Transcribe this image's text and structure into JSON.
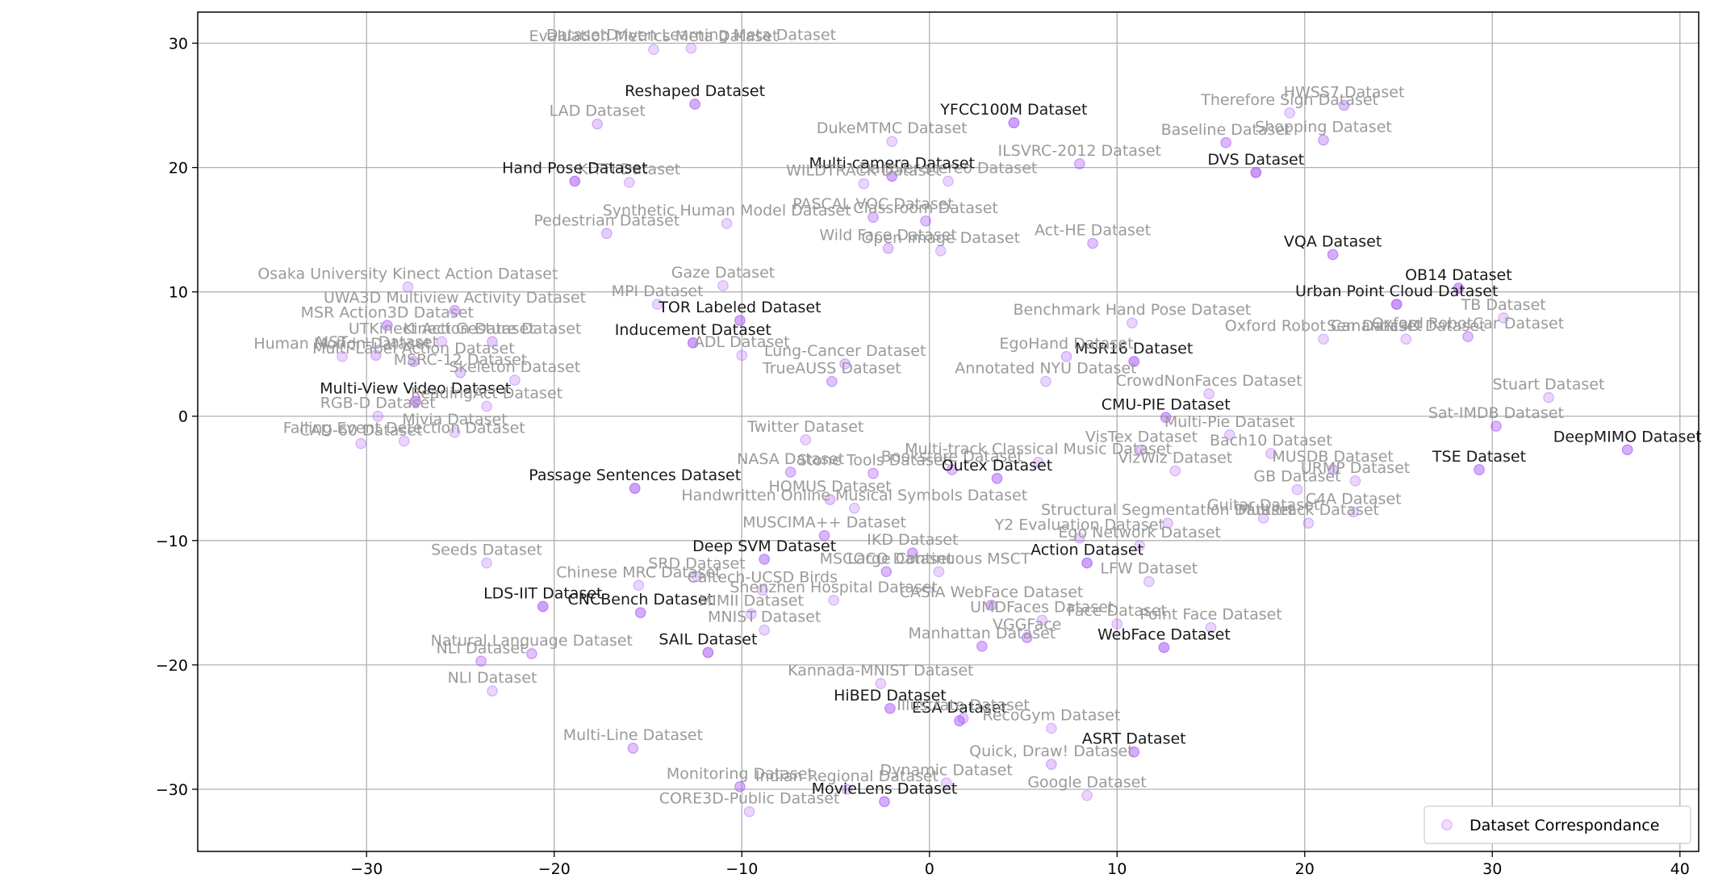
{
  "colors": {
    "point": "#a855f7",
    "grid": "#b0b0b0",
    "axis": "#000000",
    "label_light": "#9a9a9a",
    "label_dark": "#1a1a1a"
  },
  "chart_data": {
    "type": "scatter",
    "title": "",
    "xlabel": "",
    "ylabel": "",
    "xlim": [
      -39,
      41
    ],
    "ylim": [
      -35,
      32.5
    ],
    "x_ticks": [
      -30,
      -20,
      -10,
      0,
      10,
      20,
      30,
      40
    ],
    "y_ticks": [
      -30,
      -20,
      -10,
      0,
      10,
      20,
      30
    ],
    "x_tick_labels": [
      "−30",
      "−20",
      "−10",
      "0",
      "10",
      "20",
      "30",
      "40"
    ],
    "y_tick_labels": [
      "−30",
      "−20",
      "−10",
      "0",
      "10",
      "20",
      "30"
    ],
    "grid": true,
    "legend": {
      "position": "bottom-right",
      "entries": [
        "Dataset Correspondance"
      ]
    },
    "series": [
      {
        "name": "Dataset Correspondance",
        "points": [
          {
            "x": -14.7,
            "y": 29.5,
            "label": "Evaluation Metrics Meta Dataset",
            "strength": 0.2
          },
          {
            "x": -12.7,
            "y": 29.6,
            "label": "DatasetDriven Learning Meta Dataset",
            "strength": 0.2
          },
          {
            "x": -12.5,
            "y": 25.1,
            "label": "Reshaped Dataset",
            "strength": 0.6
          },
          {
            "x": -17.7,
            "y": 23.5,
            "label": "LAD Dataset",
            "strength": 0.3
          },
          {
            "x": -16.0,
            "y": 18.8,
            "label": "KITTI Dataset",
            "strength": 0.2
          },
          {
            "x": -18.9,
            "y": 18.9,
            "label": "Hand Pose Dataset",
            "strength": 0.7
          },
          {
            "x": 4.5,
            "y": 23.6,
            "label": "YFCC100M Dataset",
            "strength": 0.7
          },
          {
            "x": -2.0,
            "y": 22.1,
            "label": "DukeMTMC Dataset",
            "strength": 0.2
          },
          {
            "x": 8.0,
            "y": 20.3,
            "label": "ILSVRC-2012 Dataset",
            "strength": 0.4
          },
          {
            "x": 1.0,
            "y": 18.9,
            "label": "Daimler-stereo Dataset",
            "strength": 0.2
          },
          {
            "x": -2.0,
            "y": 19.3,
            "label": "Multi-camera Dataset",
            "strength": 0.6
          },
          {
            "x": -3.5,
            "y": 18.7,
            "label": "WILDTRACK Dataset",
            "strength": 0.2
          },
          {
            "x": 17.4,
            "y": 19.6,
            "label": "DVS Dataset",
            "strength": 0.8
          },
          {
            "x": 15.8,
            "y": 22.0,
            "label": "Baseline Dataset",
            "strength": 0.5
          },
          {
            "x": 21.0,
            "y": 22.2,
            "label": "Shopping Dataset",
            "strength": 0.4
          },
          {
            "x": 19.2,
            "y": 24.4,
            "label": "Therefore Sign Dataset",
            "strength": 0.2
          },
          {
            "x": 22.1,
            "y": 25.0,
            "label": "HWSS7 Dataset",
            "strength": 0.4
          },
          {
            "x": -17.2,
            "y": 14.7,
            "label": "Pedestrian Dataset",
            "strength": 0.3
          },
          {
            "x": -10.8,
            "y": 15.5,
            "label": "Synthetic Human Model Dataset",
            "strength": 0.2
          },
          {
            "x": -3.0,
            "y": 16.0,
            "label": "PASCAL VOC Dataset",
            "strength": 0.4
          },
          {
            "x": -0.2,
            "y": 15.7,
            "label": "Classroom Dataset",
            "strength": 0.4
          },
          {
            "x": -2.2,
            "y": 13.5,
            "label": "Wild Face Dataset",
            "strength": 0.3
          },
          {
            "x": 0.6,
            "y": 13.3,
            "label": "Open Image Dataset",
            "strength": 0.2
          },
          {
            "x": 8.7,
            "y": 13.9,
            "label": "Act-HE Dataset",
            "strength": 0.4
          },
          {
            "x": 21.5,
            "y": 13.0,
            "label": "VQA Dataset",
            "strength": 0.6
          },
          {
            "x": 28.2,
            "y": 10.3,
            "label": "OB14 Dataset",
            "strength": 0.6
          },
          {
            "x": 24.9,
            "y": 9.0,
            "label": "Urban Point Cloud Dataset",
            "strength": 0.8
          },
          {
            "x": 30.6,
            "y": 7.9,
            "label": "TB Dataset",
            "strength": 0.2
          },
          {
            "x": 28.7,
            "y": 6.4,
            "label": "Oxford RobotCar Dataset",
            "strength": 0.4
          },
          {
            "x": 25.4,
            "y": 6.2,
            "label": "Semantic3D Dataset",
            "strength": 0.2
          },
          {
            "x": 21.0,
            "y": 6.2,
            "label": "Oxford Robot Car Dataset",
            "strength": 0.2
          },
          {
            "x": -10.1,
            "y": 7.7,
            "label": "TOR Labeled Dataset",
            "strength": 0.6
          },
          {
            "x": -12.6,
            "y": 5.9,
            "label": "Inducement Dataset",
            "strength": 0.7
          },
          {
            "x": -14.5,
            "y": 9.0,
            "label": "MPI Dataset",
            "strength": 0.2
          },
          {
            "x": -11.0,
            "y": 10.5,
            "label": "Gaze Dataset",
            "strength": 0.2
          },
          {
            "x": -10.0,
            "y": 4.9,
            "label": "ADL Dataset",
            "strength": 0.2
          },
          {
            "x": -5.2,
            "y": 2.8,
            "label": "TrueAUSS Dataset",
            "strength": 0.4
          },
          {
            "x": -4.5,
            "y": 4.2,
            "label": "Lung-Cancer Dataset",
            "strength": 0.3
          },
          {
            "x": 10.9,
            "y": 4.4,
            "label": "MSR16 Dataset",
            "strength": 0.7
          },
          {
            "x": 6.2,
            "y": 2.8,
            "label": "Annotated NYU Dataset",
            "strength": 0.2
          },
          {
            "x": 10.8,
            "y": 7.5,
            "label": "Benchmark Hand Pose Dataset",
            "strength": 0.2
          },
          {
            "x": 7.3,
            "y": 4.8,
            "label": "EgoHand Dataset",
            "strength": 0.3
          },
          {
            "x": 14.9,
            "y": 1.8,
            "label": "CrowdNonFaces Dataset",
            "strength": 0.2
          },
          {
            "x": 12.6,
            "y": -0.1,
            "label": "CMU-PIE Dataset",
            "strength": 0.6
          },
          {
            "x": 16.0,
            "y": -1.5,
            "label": "Multi-Pie Dataset",
            "strength": 0.2
          },
          {
            "x": 11.3,
            "y": -2.7,
            "label": "VisTex Dataset",
            "strength": 0.3
          },
          {
            "x": -27.8,
            "y": 10.4,
            "label": "Osaka University Kinect Action Dataset",
            "strength": 0.2
          },
          {
            "x": -25.3,
            "y": 8.5,
            "label": "UWA3D Multiview Activity Dataset",
            "strength": 0.4
          },
          {
            "x": -28.9,
            "y": 7.3,
            "label": "MSR Action3D Dataset",
            "strength": 0.5
          },
          {
            "x": -26.0,
            "y": 6.0,
            "label": "UTKinect Action Dataset",
            "strength": 0.2
          },
          {
            "x": -23.3,
            "y": 6.0,
            "label": "Kinect Gesture Dataset",
            "strength": 0.3
          },
          {
            "x": -29.5,
            "y": 4.9,
            "label": "AIST++ Dataset",
            "strength": 0.3
          },
          {
            "x": -27.5,
            "y": 4.4,
            "label": "Multi-Label Action Dataset",
            "strength": 0.4
          },
          {
            "x": -25.0,
            "y": 3.5,
            "label": "MSRC-12 Dataset",
            "strength": 0.3
          },
          {
            "x": -22.1,
            "y": 2.9,
            "label": "Skeleton Dataset",
            "strength": 0.2
          },
          {
            "x": -27.4,
            "y": 1.2,
            "label": "Multi-View Video Dataset",
            "strength": 0.7
          },
          {
            "x": -23.6,
            "y": 0.8,
            "label": "ReadingAct Dataset",
            "strength": 0.2
          },
          {
            "x": -29.4,
            "y": 0.0,
            "label": "RGB-D Dataset",
            "strength": 0.2
          },
          {
            "x": -28.0,
            "y": -2.0,
            "label": "Falling Event Detection Dataset",
            "strength": 0.2
          },
          {
            "x": -30.3,
            "y": -2.2,
            "label": "CAD-60 Dataset",
            "strength": 0.2
          },
          {
            "x": -25.3,
            "y": -1.3,
            "label": "Mivia Dataset",
            "strength": 0.2
          },
          {
            "x": -31.3,
            "y": 4.8,
            "label": "Human Motion Dataset",
            "strength": 0.2
          },
          {
            "x": -15.7,
            "y": -5.8,
            "label": "Passage Sentences Dataset",
            "strength": 0.7
          },
          {
            "x": -7.4,
            "y": -4.5,
            "label": "NASA Dataset",
            "strength": 0.4
          },
          {
            "x": -5.3,
            "y": -6.7,
            "label": "HOMUS Dataset",
            "strength": 0.3
          },
          {
            "x": -4.0,
            "y": -7.4,
            "label": "Handwritten Online Musical Symbols Dataset",
            "strength": 0.2
          },
          {
            "x": -6.6,
            "y": -1.9,
            "label": "Twitter Dataset",
            "strength": 0.2
          },
          {
            "x": -3.0,
            "y": -4.6,
            "label": "Stone Tools Dataset",
            "strength": 0.4
          },
          {
            "x": 1.2,
            "y": -4.3,
            "label": "Bookstore Dataset",
            "strength": 0.4
          },
          {
            "x": 3.6,
            "y": -5.0,
            "label": "Outex Dataset",
            "strength": 0.6
          },
          {
            "x": 5.8,
            "y": -3.7,
            "label": "Multi-track Classical Music Dataset",
            "strength": 0.2
          },
          {
            "x": 13.1,
            "y": -4.4,
            "label": "VizWiz Dataset",
            "strength": 0.2
          },
          {
            "x": 12.7,
            "y": -8.6,
            "label": "Structural Segmentation Dataset",
            "strength": 0.2
          },
          {
            "x": 18.2,
            "y": -3.0,
            "label": "Bach10 Dataset",
            "strength": 0.2
          },
          {
            "x": 17.8,
            "y": -8.2,
            "label": "Guitar Dataset",
            "strength": 0.2
          },
          {
            "x": 20.2,
            "y": -8.6,
            "label": "Multitrack Dataset",
            "strength": 0.2
          },
          {
            "x": 22.6,
            "y": -7.7,
            "label": "C4A Dataset",
            "strength": 0.2
          },
          {
            "x": 22.7,
            "y": -5.2,
            "label": "URMP Dataset",
            "strength": 0.2
          },
          {
            "x": 21.5,
            "y": -4.3,
            "label": "MUSDB Dataset",
            "strength": 0.3
          },
          {
            "x": 29.3,
            "y": -4.3,
            "label": "TSE Dataset",
            "strength": 0.6
          },
          {
            "x": 30.2,
            "y": -0.8,
            "label": "Sat-IMDB Dataset",
            "strength": 0.5
          },
          {
            "x": 33.0,
            "y": 1.5,
            "label": "Stuart Dataset",
            "strength": 0.2
          },
          {
            "x": 37.2,
            "y": -2.7,
            "label": "DeepMIMO Dataset",
            "strength": 0.6
          },
          {
            "x": 19.6,
            "y": -5.9,
            "label": "GB Dataset",
            "strength": 0.2
          },
          {
            "x": -8.8,
            "y": -11.5,
            "label": "Deep SVM Dataset",
            "strength": 0.6
          },
          {
            "x": -5.6,
            "y": -9.6,
            "label": "MUSCIMA++ Dataset",
            "strength": 0.5
          },
          {
            "x": -0.9,
            "y": -11.0,
            "label": "IKD Dataset",
            "strength": 0.5
          },
          {
            "x": 0.5,
            "y": -12.5,
            "label": "Large Continuous MSCT",
            "strength": 0.2
          },
          {
            "x": 8.4,
            "y": -11.8,
            "label": "Action Dataset",
            "strength": 0.7
          },
          {
            "x": 11.2,
            "y": -10.4,
            "label": "Ego Network Dataset",
            "strength": 0.2
          },
          {
            "x": 11.7,
            "y": -13.3,
            "label": "LFW Dataset",
            "strength": 0.2
          },
          {
            "x": 8.0,
            "y": -9.8,
            "label": "Y2 Evaluation Dataset",
            "strength": 0.2
          },
          {
            "x": -23.6,
            "y": -11.8,
            "label": "Seeds Dataset",
            "strength": 0.2
          },
          {
            "x": -20.6,
            "y": -15.3,
            "label": "LDS-IIT Dataset",
            "strength": 0.7
          },
          {
            "x": -15.5,
            "y": -13.6,
            "label": "Chinese MRC Dataset",
            "strength": 0.2
          },
          {
            "x": -15.4,
            "y": -15.8,
            "label": "CNCBench Dataset",
            "strength": 0.6
          },
          {
            "x": -12.4,
            "y": -12.9,
            "label": "SRD Dataset",
            "strength": 0.2
          },
          {
            "x": -8.9,
            "y": -14.0,
            "label": "Caltech-UCSD Birds",
            "strength": 0.2
          },
          {
            "x": -9.5,
            "y": -15.9,
            "label": "MIMII Dataset",
            "strength": 0.2
          },
          {
            "x": -5.1,
            "y": -14.8,
            "label": "Shenzhen Hospital Dataset",
            "strength": 0.2
          },
          {
            "x": -2.3,
            "y": -12.5,
            "label": "MSCOCO Dataset",
            "strength": 0.5
          },
          {
            "x": 3.3,
            "y": -15.2,
            "label": "CASIA WebFace Dataset",
            "strength": 0.5
          },
          {
            "x": 6.0,
            "y": -16.4,
            "label": "UMDFaces Dataset",
            "strength": 0.2
          },
          {
            "x": 10.0,
            "y": -16.7,
            "label": "Face Dataset",
            "strength": 0.2
          },
          {
            "x": 15.0,
            "y": -17.0,
            "label": "Point Face Dataset",
            "strength": 0.2
          },
          {
            "x": 12.5,
            "y": -18.6,
            "label": "WebFace Dataset",
            "strength": 0.7
          },
          {
            "x": 5.2,
            "y": -17.8,
            "label": "VGGFace",
            "strength": 0.5
          },
          {
            "x": 2.8,
            "y": -18.5,
            "label": "Manhattan Dataset",
            "strength": 0.5
          },
          {
            "x": -8.8,
            "y": -17.2,
            "label": "MNIST Dataset",
            "strength": 0.2
          },
          {
            "x": -11.8,
            "y": -19.0,
            "label": "SAIL Dataset",
            "strength": 0.7
          },
          {
            "x": -21.2,
            "y": -19.1,
            "label": "Natural Language Dataset",
            "strength": 0.4
          },
          {
            "x": -23.9,
            "y": -19.7,
            "label": "NLI Dataset",
            "strength": 0.4
          },
          {
            "x": -23.3,
            "y": -22.1,
            "label": "NLI Dataset",
            "strength": 0.2
          },
          {
            "x": -15.8,
            "y": -26.7,
            "label": "Multi-Line Dataset",
            "strength": 0.4
          },
          {
            "x": -10.1,
            "y": -29.8,
            "label": "Monitoring Dataset",
            "strength": 0.5
          },
          {
            "x": -2.4,
            "y": -31.0,
            "label": "MovieLens Dataset",
            "strength": 0.6
          },
          {
            "x": -9.6,
            "y": -31.8,
            "label": "CORE3D-Public Dataset",
            "strength": 0.2
          },
          {
            "x": -4.4,
            "y": -30.0,
            "label": "Indian Regional Dataset",
            "strength": 0.2
          },
          {
            "x": -2.1,
            "y": -23.5,
            "label": "HiBED Dataset",
            "strength": 0.6
          },
          {
            "x": 1.6,
            "y": -24.5,
            "label": "ESA Dataset",
            "strength": 0.6
          },
          {
            "x": 1.8,
            "y": -24.3,
            "label": "Illustrate Dataset",
            "strength": 0.3
          },
          {
            "x": 6.5,
            "y": -25.1,
            "label": "RecoGym Dataset",
            "strength": 0.2
          },
          {
            "x": 6.5,
            "y": -28.0,
            "label": "Quick, Draw! Dataset",
            "strength": 0.3
          },
          {
            "x": 10.9,
            "y": -27.0,
            "label": "ASRT Dataset",
            "strength": 0.6
          },
          {
            "x": 0.9,
            "y": -29.5,
            "label": "Dynamic Dataset",
            "strength": 0.2
          },
          {
            "x": 8.4,
            "y": -30.5,
            "label": "Google Dataset",
            "strength": 0.2
          },
          {
            "x": -2.6,
            "y": -21.5,
            "label": "Kannada-MNIST Dataset",
            "strength": 0.2
          }
        ]
      }
    ]
  }
}
